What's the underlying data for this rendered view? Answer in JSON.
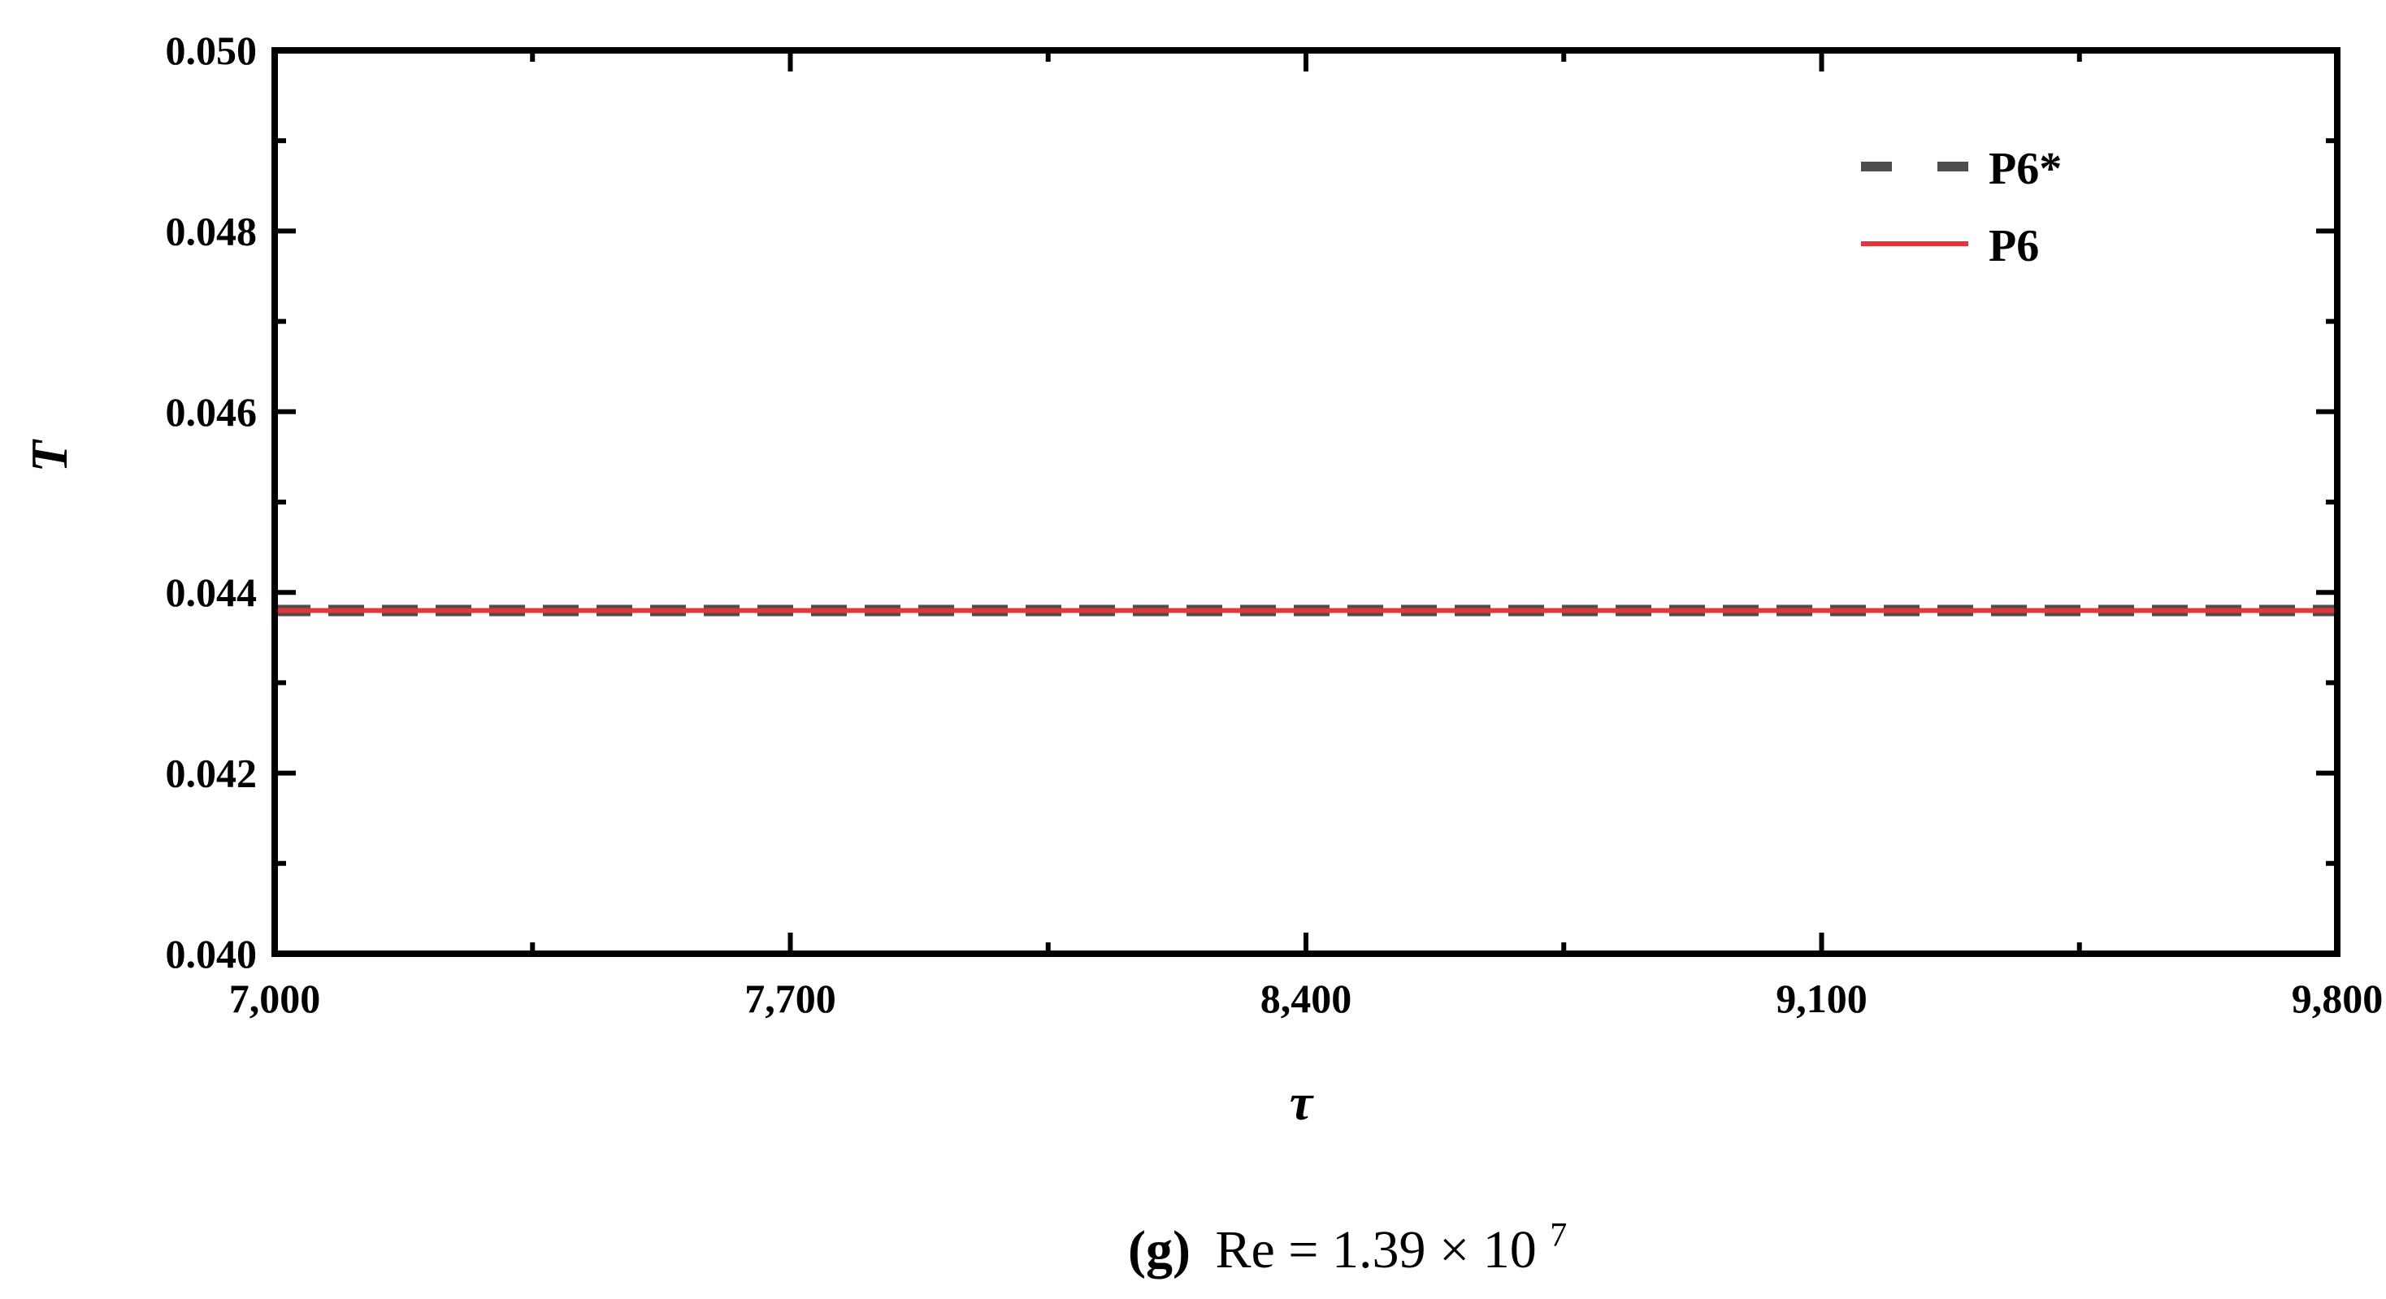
{
  "chart_data": {
    "type": "line",
    "x_label": "τ",
    "y_label": "T",
    "xlim": [
      7000,
      9800
    ],
    "ylim": [
      0.04,
      0.05
    ],
    "x_ticks": [
      7000,
      7700,
      8400,
      9100,
      9800
    ],
    "x_tick_labels": [
      "7,000",
      "7,700",
      "8,400",
      "9,100",
      "9,800"
    ],
    "y_ticks": [
      0.04,
      0.042,
      0.044,
      0.046,
      0.048,
      0.05
    ],
    "y_tick_labels": [
      "0.040",
      "0.042",
      "0.044",
      "0.046",
      "0.048",
      "0.050"
    ],
    "legend_position": "top-right",
    "series": [
      {
        "name": "P6*",
        "style": "dashed",
        "color": "#4d4d4d",
        "x": [
          7000,
          9800
        ],
        "y": [
          0.0438,
          0.0438
        ]
      },
      {
        "name": "P6",
        "style": "solid",
        "color": "#e8333a",
        "x": [
          7000,
          9800
        ],
        "y": [
          0.0438,
          0.0438
        ]
      }
    ]
  },
  "caption": {
    "label": "(g)",
    "text": "Re = 1.39 × 10",
    "exponent": "7"
  }
}
